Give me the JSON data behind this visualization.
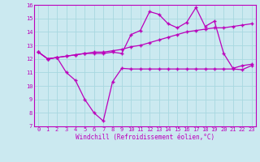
{
  "xlabel": "Windchill (Refroidissement éolien,°C)",
  "x_ticks": [
    0,
    1,
    2,
    3,
    4,
    5,
    6,
    7,
    8,
    9,
    10,
    11,
    12,
    13,
    14,
    15,
    16,
    17,
    18,
    19,
    20,
    21,
    22,
    23
  ],
  "ylim": [
    7,
    16
  ],
  "yticks": [
    7,
    8,
    9,
    10,
    11,
    12,
    13,
    14,
    15,
    16
  ],
  "bg_color": "#cbe9f0",
  "line_color": "#bb00bb",
  "grid_color": "#a8d8e0",
  "line1_x": [
    0,
    1,
    2,
    3,
    4,
    5,
    6,
    7,
    8,
    9,
    10,
    11,
    12,
    13,
    14,
    15,
    16,
    17,
    18,
    19,
    20,
    21,
    22,
    23
  ],
  "line1_y": [
    12.5,
    12.0,
    12.1,
    11.0,
    10.4,
    9.0,
    8.0,
    7.4,
    10.3,
    11.3,
    11.25,
    11.25,
    11.25,
    11.25,
    11.25,
    11.25,
    11.25,
    11.25,
    11.25,
    11.25,
    11.25,
    11.25,
    11.2,
    11.5
  ],
  "line2_x": [
    0,
    1,
    2,
    3,
    4,
    5,
    6,
    7,
    8,
    9,
    10,
    11,
    12,
    13,
    14,
    15,
    16,
    17,
    18,
    19,
    20,
    21,
    22,
    23
  ],
  "line2_y": [
    12.5,
    12.0,
    12.1,
    12.2,
    12.3,
    12.4,
    12.5,
    12.5,
    12.6,
    12.7,
    12.9,
    13.0,
    13.2,
    13.4,
    13.6,
    13.8,
    14.0,
    14.1,
    14.2,
    14.3,
    14.3,
    14.4,
    14.5,
    14.6
  ],
  "line3_x": [
    0,
    1,
    2,
    3,
    4,
    5,
    6,
    7,
    8,
    9,
    10,
    11,
    12,
    13,
    14,
    15,
    16,
    17,
    18,
    19,
    20,
    21,
    22,
    23
  ],
  "line3_y": [
    12.5,
    12.0,
    12.1,
    12.2,
    12.3,
    12.4,
    12.4,
    12.4,
    12.5,
    12.4,
    13.8,
    14.1,
    15.5,
    15.3,
    14.6,
    14.3,
    14.7,
    15.8,
    14.4,
    14.8,
    12.4,
    11.3,
    11.5,
    11.6
  ],
  "figsize": [
    3.2,
    2.0
  ],
  "dpi": 100
}
